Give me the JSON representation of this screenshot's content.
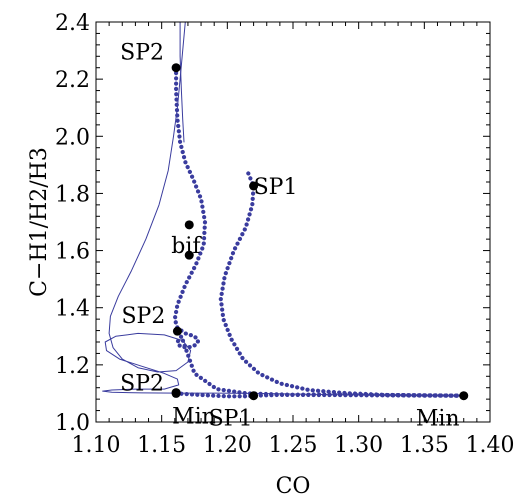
{
  "chart_data": {
    "type": "scatter",
    "title": "",
    "xlabel": "CO",
    "ylabel": "C−H1/H2/H3",
    "xlim": [
      1.1,
      1.4
    ],
    "ylim": [
      1.0,
      2.4
    ],
    "x_ticks": [
      "1.10",
      "1.15",
      "1.20",
      "1.25",
      "1.30",
      "1.35",
      "1.40"
    ],
    "y_ticks": [
      "1.0",
      "1.2",
      "1.4",
      "1.6",
      "1.8",
      "2.0",
      "2.2",
      "2.4"
    ],
    "grid": false,
    "colors": {
      "curve": "#3a3c9e",
      "point": "#000000",
      "frame": "#000000"
    },
    "points": [
      {
        "label": "SP2",
        "x": 1.161,
        "y": 2.24
      },
      {
        "label": "SP1",
        "x": 1.22,
        "y": 1.826
      },
      {
        "label": "",
        "x": 1.171,
        "y": 1.69
      },
      {
        "label": "bif",
        "x": 1.171,
        "y": 1.584
      },
      {
        "label": "SP2",
        "x": 1.162,
        "y": 1.318
      },
      {
        "label": "SP2",
        "x": 1.161,
        "y": 1.103
      },
      {
        "label": "Min",
        "x": 1.161,
        "y": 1.1
      },
      {
        "label": "SP1",
        "x": 1.22,
        "y": 1.092
      },
      {
        "label": "Min",
        "x": 1.38,
        "y": 1.092
      }
    ],
    "series": [
      {
        "style": "dotted",
        "x": [
          1.161,
          1.161,
          1.162,
          1.164,
          1.168,
          1.174,
          1.18,
          1.183,
          1.182,
          1.176,
          1.168,
          1.162,
          1.16,
          1.162,
          1.168,
          1.175,
          1.178,
          1.176,
          1.17,
          1.164,
          1.162,
          1.165,
          1.175,
          1.192,
          1.215,
          1.25,
          1.29,
          1.33,
          1.36,
          1.38
        ],
        "y": [
          2.24,
          2.16,
          2.06,
          1.98,
          1.91,
          1.85,
          1.78,
          1.7,
          1.62,
          1.55,
          1.48,
          1.41,
          1.36,
          1.33,
          1.31,
          1.3,
          1.285,
          1.27,
          1.26,
          1.265,
          1.28,
          1.3,
          1.17,
          1.115,
          1.1,
          1.095,
          1.094,
          1.093,
          1.092,
          1.092
        ]
      },
      {
        "style": "dotted",
        "x": [
          1.216,
          1.22,
          1.219,
          1.214,
          1.205,
          1.198,
          1.195,
          1.197,
          1.203,
          1.212,
          1.224,
          1.24,
          1.262,
          1.29,
          1.32,
          1.35,
          1.38
        ],
        "y": [
          1.87,
          1.826,
          1.76,
          1.68,
          1.6,
          1.51,
          1.43,
          1.36,
          1.29,
          1.22,
          1.17,
          1.135,
          1.112,
          1.101,
          1.095,
          1.093,
          1.092
        ]
      },
      {
        "style": "dotted",
        "x": [
          1.161,
          1.175,
          1.19,
          1.2,
          1.215,
          1.22,
          1.24,
          1.27,
          1.3,
          1.33,
          1.36,
          1.38
        ],
        "y": [
          1.1,
          1.096,
          1.092,
          1.09,
          1.09,
          1.092,
          1.095,
          1.096,
          1.095,
          1.094,
          1.093,
          1.092
        ]
      },
      {
        "style": "thin",
        "x": [
          1.168,
          1.166,
          1.164,
          1.162,
          1.159,
          1.155,
          1.148,
          1.138,
          1.127,
          1.117,
          1.111,
          1.11,
          1.113,
          1.12,
          1.132,
          1.147,
          1.161,
          1.17,
          1.172,
          1.166,
          1.152,
          1.132,
          1.115,
          1.107,
          1.108,
          1.118,
          1.135,
          1.152,
          1.162,
          1.163,
          1.152,
          1.13,
          1.112,
          1.105,
          1.112,
          1.135,
          1.162,
          1.19,
          1.22,
          1.25,
          1.28,
          1.31,
          1.34,
          1.365,
          1.38
        ],
        "y": [
          2.4,
          2.3,
          2.2,
          2.1,
          2.0,
          1.88,
          1.76,
          1.64,
          1.53,
          1.44,
          1.37,
          1.31,
          1.26,
          1.22,
          1.19,
          1.175,
          1.18,
          1.21,
          1.25,
          1.285,
          1.305,
          1.31,
          1.3,
          1.28,
          1.25,
          1.22,
          1.195,
          1.17,
          1.15,
          1.13,
          1.115,
          1.115,
          1.112,
          1.108,
          1.104,
          1.102,
          1.101,
          1.101,
          1.1,
          1.098,
          1.096,
          1.094,
          1.093,
          1.092,
          1.092
        ]
      },
      {
        "style": "thin",
        "x": [
          1.164,
          1.164,
          1.165,
          1.166,
          1.167
        ],
        "y": [
          2.4,
          2.28,
          2.16,
          2.06,
          1.98
        ]
      }
    ]
  }
}
